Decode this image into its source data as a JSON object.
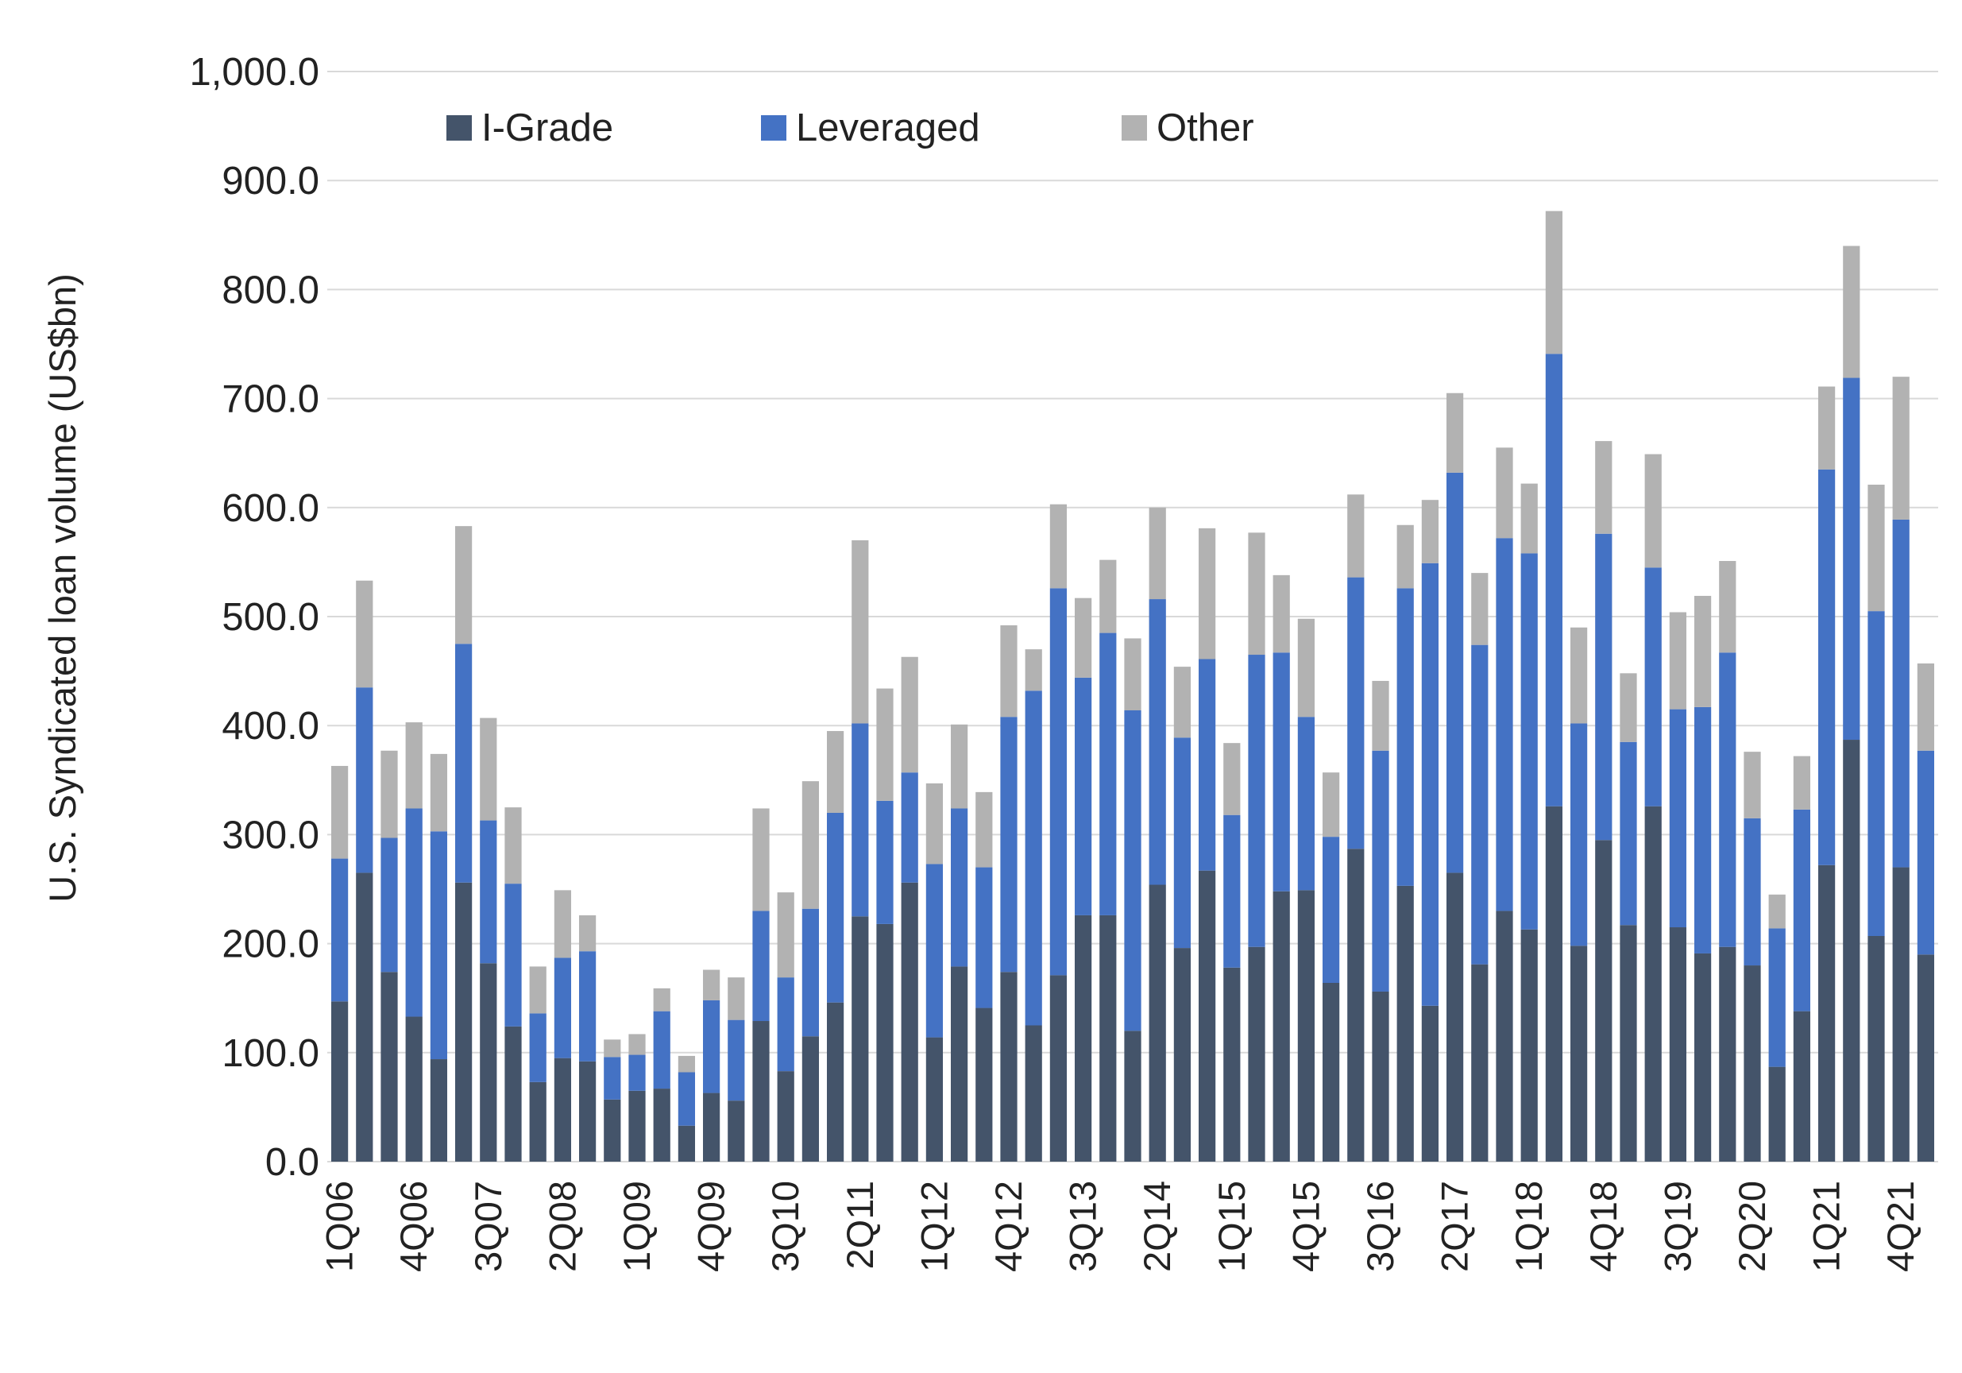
{
  "chart_data": {
    "type": "bar",
    "stacked": true,
    "ylabel": "U.S. Syndicated loan volume (US$bn)",
    "xlabel": "",
    "ylim": [
      0,
      1000
    ],
    "y_ticks": [
      "0.0",
      "100.0",
      "200.0",
      "300.0",
      "400.0",
      "500.0",
      "600.0",
      "700.0",
      "800.0",
      "900.0",
      "1,000.0"
    ],
    "grid": true,
    "legend_position": "top",
    "categories": [
      "1Q06",
      "2Q06",
      "3Q06",
      "4Q06",
      "1Q07",
      "2Q07",
      "3Q07",
      "4Q07",
      "1Q08",
      "2Q08",
      "3Q08",
      "4Q08",
      "1Q09",
      "2Q09",
      "3Q09",
      "4Q09",
      "1Q10",
      "2Q10",
      "3Q10",
      "4Q10",
      "1Q11",
      "2Q11",
      "3Q11",
      "4Q11",
      "1Q12",
      "2Q12",
      "3Q12",
      "4Q12",
      "1Q13",
      "2Q13",
      "3Q13",
      "4Q13",
      "1Q14",
      "2Q14",
      "3Q14",
      "4Q14",
      "1Q15",
      "2Q15",
      "3Q15",
      "4Q15",
      "1Q16",
      "2Q16",
      "3Q16",
      "4Q16",
      "1Q17",
      "2Q17",
      "3Q17",
      "4Q17",
      "1Q18",
      "2Q18",
      "3Q18",
      "4Q18",
      "1Q19",
      "2Q19",
      "3Q19",
      "4Q19",
      "1Q20",
      "2Q20",
      "3Q20",
      "4Q20",
      "1Q21",
      "2Q21",
      "3Q21",
      "4Q21",
      "1Q22"
    ],
    "tick_labels": [
      "1Q06",
      "4Q06",
      "3Q07",
      "2Q08",
      "1Q09",
      "4Q09",
      "3Q10",
      "2Q11",
      "1Q12",
      "4Q12",
      "3Q13",
      "2Q14",
      "1Q15",
      "4Q15",
      "3Q16",
      "2Q17",
      "1Q18",
      "4Q18",
      "3Q19",
      "2Q20",
      "1Q21",
      "4Q21"
    ],
    "series": [
      {
        "name": "I-Grade",
        "color": "#44546a",
        "values": [
          147,
          265,
          174,
          133,
          94,
          256,
          182,
          124,
          73,
          95,
          92,
          57,
          65,
          67,
          33,
          63,
          56,
          129,
          83,
          115,
          146,
          225,
          218,
          256,
          114,
          179,
          141,
          174,
          125,
          171,
          226,
          226,
          120,
          254,
          196,
          267,
          178,
          197,
          248,
          249,
          164,
          287,
          156,
          253,
          143,
          265,
          181,
          230,
          213,
          326,
          198,
          295,
          217,
          326,
          215,
          191,
          197,
          180,
          87,
          138,
          272,
          387,
          207,
          270,
          190
        ]
      },
      {
        "name": "Leveraged",
        "color": "#4472c4",
        "values": [
          131,
          170,
          123,
          191,
          209,
          219,
          131,
          131,
          63,
          92,
          101,
          39,
          33,
          71,
          49,
          85,
          74,
          101,
          86,
          117,
          174,
          177,
          113,
          101,
          159,
          145,
          129,
          234,
          307,
          355,
          218,
          259,
          294,
          262,
          193,
          194,
          140,
          268,
          219,
          159,
          134,
          249,
          221,
          273,
          406,
          367,
          293,
          342,
          345,
          415,
          204,
          281,
          168,
          219,
          200,
          226,
          270,
          135,
          127,
          185,
          363,
          332,
          298,
          319,
          187
        ]
      },
      {
        "name": "Other",
        "color": "#b2b2b2",
        "values": [
          85,
          98,
          80,
          79,
          71,
          108,
          94,
          70,
          43,
          62,
          33,
          16,
          19,
          21,
          15,
          28,
          39,
          94,
          78,
          117,
          75,
          168,
          103,
          106,
          74,
          77,
          69,
          84,
          38,
          77,
          73,
          67,
          66,
          84,
          65,
          120,
          66,
          112,
          71,
          90,
          59,
          76,
          64,
          58,
          58,
          73,
          66,
          83,
          64,
          131,
          88,
          85,
          63,
          104,
          89,
          102,
          84,
          61,
          31,
          49,
          76,
          121,
          116,
          131,
          80
        ]
      }
    ]
  }
}
